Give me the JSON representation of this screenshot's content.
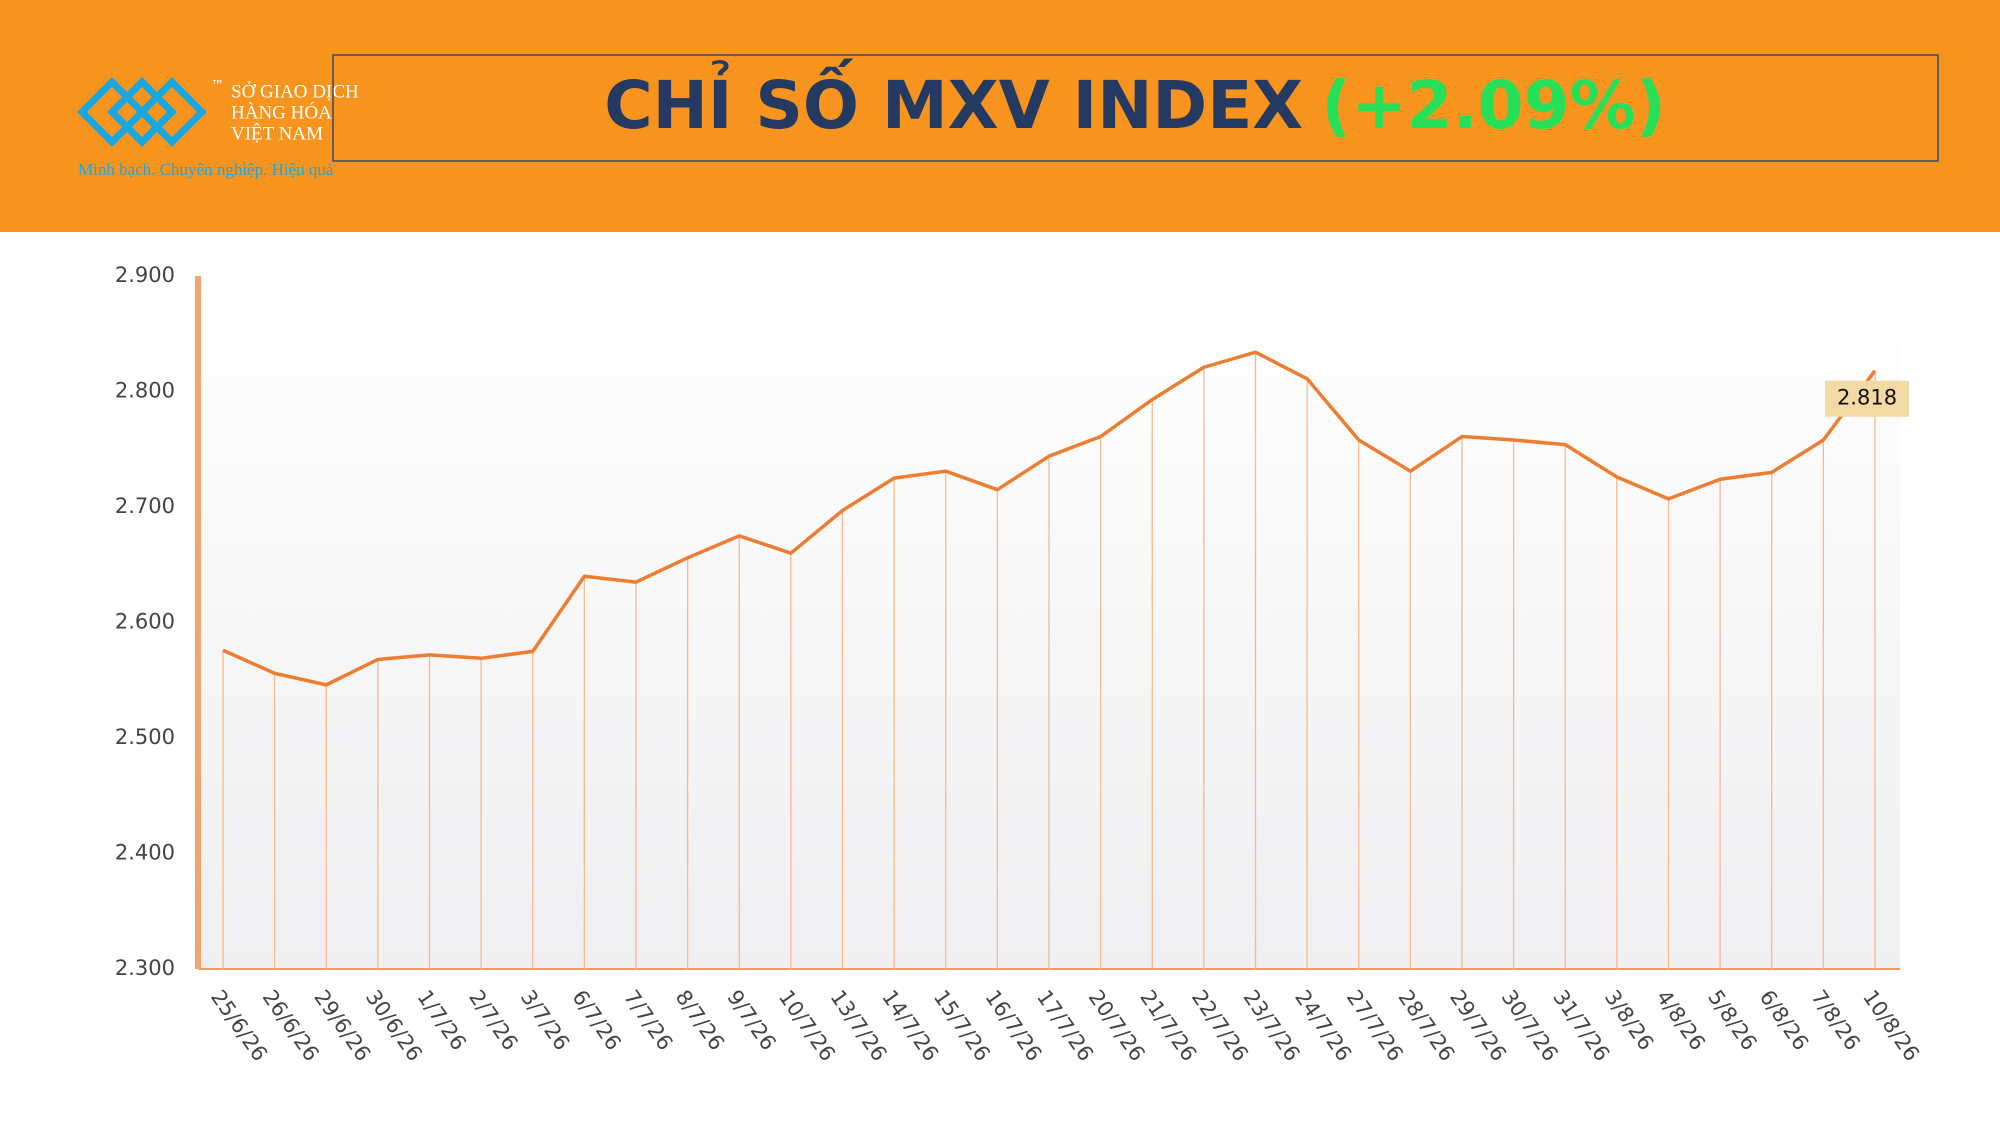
{
  "header": {
    "logo_lines": [
      "SỞ GIAO DỊCH",
      "HÀNG HÓA",
      "VIỆT NAM"
    ],
    "trademark": "™",
    "slogan": "Minh bạch. Chuyên nghiệp. Hiệu quả"
  },
  "chart_data": {
    "type": "line",
    "title": "CHỈ SỐ MXV INDEX",
    "subtitle": "(+2.09%)",
    "categories": [
      "25/6/26",
      "26/6/26",
      "29/6/26",
      "30/6/26",
      "1/7/26",
      "2/7/26",
      "3/7/26",
      "6/7/26",
      "7/7/26",
      "8/7/26",
      "9/7/26",
      "10/7/26",
      "13/7/26",
      "14/7/26",
      "15/7/26",
      "16/7/26",
      "17/7/26",
      "20/7/26",
      "21/7/26",
      "22/7/26",
      "23/7/26",
      "24/7/26",
      "27/7/26",
      "28/7/26",
      "29/7/26",
      "30/7/26",
      "31/7/26",
      "3/8/26",
      "4/8/26",
      "5/8/26",
      "6/8/26",
      "7/8/26",
      "10/8/26"
    ],
    "values": [
      2576,
      2556,
      2546,
      2568,
      2572,
      2569,
      2575,
      2640,
      2635,
      2656,
      2675,
      2660,
      2697,
      2725,
      2731,
      2715,
      2744,
      2761,
      2793,
      2821,
      2834,
      2811,
      2758,
      2731,
      2761,
      2758,
      2754,
      2726,
      2707,
      2724,
      2730,
      2758,
      2818
    ],
    "value_labels": [
      null,
      null,
      null,
      null,
      null,
      null,
      null,
      null,
      null,
      null,
      null,
      null,
      null,
      null,
      null,
      null,
      null,
      null,
      null,
      null,
      null,
      null,
      null,
      null,
      null,
      null,
      null,
      null,
      null,
      null,
      null,
      null,
      "2.818"
    ],
    "color": "#ed7d31",
    "ylim": [
      2300,
      2900
    ],
    "yticks": [
      {
        "value": 2300,
        "label": "2.300"
      },
      {
        "value": 2400,
        "label": "2.400"
      },
      {
        "value": 2500,
        "label": "2.500"
      },
      {
        "value": 2600,
        "label": "2.600"
      },
      {
        "value": 2700,
        "label": "2.700"
      },
      {
        "value": 2800,
        "label": "2.800"
      },
      {
        "value": 2900,
        "label": "2.900"
      }
    ]
  }
}
